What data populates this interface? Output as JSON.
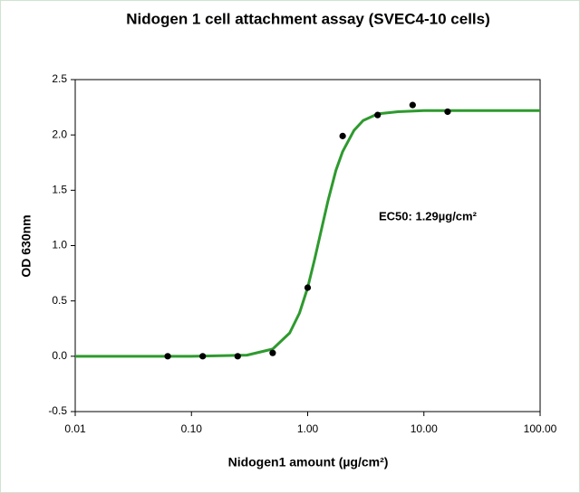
{
  "chart_data": {
    "type": "scatter",
    "title": "Nidogen 1 cell attachment assay (SVEC4-10 cells)",
    "xlabel": "Nidogen1 amount (µg/cm²)",
    "ylabel": "OD 630nm",
    "annotation": "EC50: 1.29µg/cm²",
    "xscale": "log",
    "xlim": [
      0.01,
      100
    ],
    "xticks": [
      0.01,
      {
        "value": 0.1,
        "label": "0.10"
      },
      {
        "value": 1,
        "label": "1.00"
      },
      {
        "value": 10,
        "label": "10.00"
      },
      {
        "value": 100,
        "label": "100.00"
      }
    ],
    "ylim": [
      -0.5,
      2.5
    ],
    "yticks": [
      -0.5,
      {
        "value": 0,
        "label": "0.0"
      },
      0.5,
      {
        "value": 1,
        "label": "1.0"
      },
      1.5,
      {
        "value": 2,
        "label": "2.0"
      },
      2.5
    ],
    "series": [
      {
        "type": "scatter",
        "color": "#000000",
        "x": [
          0.0625,
          0.125,
          0.25,
          0.5,
          1,
          2,
          4,
          8,
          16
        ],
        "values": [
          0.0,
          0.0,
          0.0,
          0.03,
          0.62,
          1.99,
          2.18,
          2.27,
          2.21
        ]
      },
      {
        "type": "line",
        "color": "#2e9a2e",
        "x": [
          0.01,
          0.1,
          0.3,
          0.5,
          0.7,
          0.85,
          1,
          1.15,
          1.29,
          1.5,
          1.75,
          2,
          2.5,
          3,
          4,
          6,
          10,
          100
        ],
        "values": [
          0.0,
          0.0,
          0.01,
          0.065,
          0.21,
          0.39,
          0.62,
          0.88,
          1.11,
          1.41,
          1.68,
          1.85,
          2.04,
          2.13,
          2.19,
          2.21,
          2.22,
          2.22
        ]
      }
    ]
  }
}
